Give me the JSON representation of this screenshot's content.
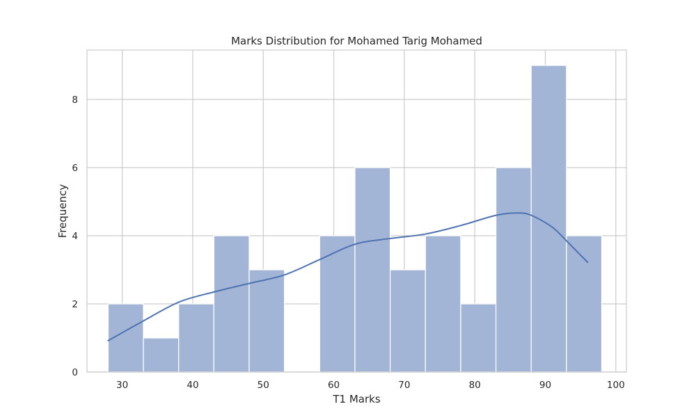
{
  "chart_data": {
    "type": "bar",
    "title": "Marks Distribution for Mohamed Tarig Mohamed",
    "xlabel": "T1 Marks",
    "ylabel": "Frequency",
    "xlim": [
      25,
      101.5
    ],
    "ylim": [
      0,
      9.45
    ],
    "xticks": [
      "30",
      "40",
      "50",
      "60",
      "70",
      "80",
      "90",
      "100"
    ],
    "yticks": [
      "0",
      "2",
      "4",
      "6",
      "8"
    ],
    "grid": true,
    "bin_edges": [
      28,
      33,
      38,
      43,
      48,
      53,
      58,
      63,
      68,
      73,
      78,
      83,
      88,
      93,
      98
    ],
    "values": [
      2,
      1,
      2,
      4,
      3,
      0,
      4,
      6,
      3,
      4,
      2,
      6,
      9,
      4
    ],
    "kde_curve": {
      "x": [
        28,
        33,
        38,
        43,
        48,
        53,
        58,
        63,
        68,
        73,
        78,
        83,
        86,
        88,
        91,
        93,
        96
      ],
      "y": [
        0.92,
        1.5,
        2.05,
        2.35,
        2.6,
        2.85,
        3.3,
        3.75,
        3.92,
        4.05,
        4.3,
        4.6,
        4.67,
        4.6,
        4.25,
        3.85,
        3.22
      ]
    },
    "colors": {
      "bar_fill": "#a3b5d6",
      "bar_edge": "#ffffff",
      "kde_line": "#4c72b0",
      "grid": "#cccccc",
      "spine": "#cccccc"
    }
  }
}
